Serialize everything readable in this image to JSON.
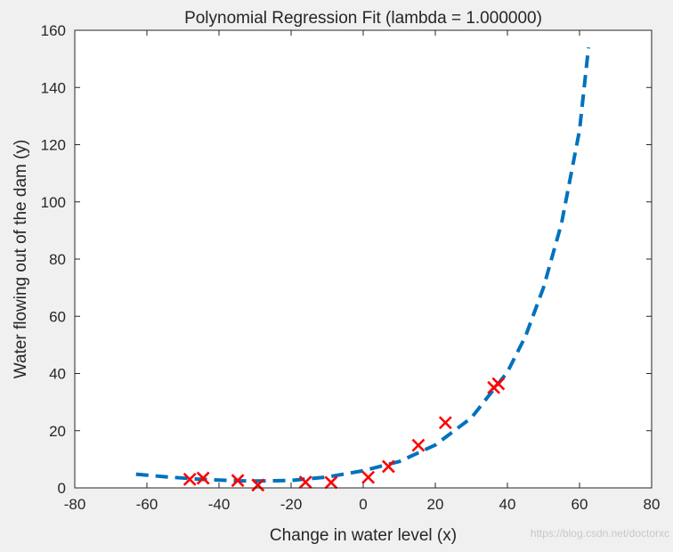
{
  "chart_data": {
    "type": "scatter",
    "title": "Polynomial Regression Fit (lambda = 1.000000)",
    "xlabel": "Change in water level (x)",
    "ylabel": "Water flowing out of the dam (y)",
    "xlim": [
      -80,
      80
    ],
    "ylim": [
      0,
      160
    ],
    "xticks": [
      -80,
      -60,
      -40,
      -20,
      0,
      20,
      40,
      60,
      80
    ],
    "yticks": [
      0,
      20,
      40,
      60,
      80,
      100,
      120,
      140,
      160
    ],
    "grid": false,
    "legend": "none",
    "series": [
      {
        "kind": "scatter",
        "marker": "x",
        "color": "#ff0000",
        "points": [
          [
            -48.1,
            3.0
          ],
          [
            -44.4,
            3.4
          ],
          [
            -34.8,
            2.6
          ],
          [
            -29.2,
            1.0
          ],
          [
            -16.0,
            2.0
          ],
          [
            -8.9,
            1.9
          ],
          [
            1.4,
            3.7
          ],
          [
            7.0,
            7.5
          ],
          [
            15.3,
            14.9
          ],
          [
            22.8,
            22.8
          ],
          [
            36.2,
            35.1
          ],
          [
            37.5,
            36.4
          ]
        ]
      },
      {
        "kind": "line",
        "style": "dashed",
        "color": "#0072bd",
        "points": [
          [
            -63,
            4.8
          ],
          [
            -55,
            3.9
          ],
          [
            -45,
            3.0
          ],
          [
            -35,
            2.5
          ],
          [
            -30,
            2.4
          ],
          [
            -20,
            2.6
          ],
          [
            -10,
            3.8
          ],
          [
            0,
            6.0
          ],
          [
            10,
            9.2
          ],
          [
            20,
            15.0
          ],
          [
            30,
            24.5
          ],
          [
            40,
            40.5
          ],
          [
            45,
            53.0
          ],
          [
            50,
            70.0
          ],
          [
            55,
            92.5
          ],
          [
            60,
            125.0
          ],
          [
            62.5,
            154.0
          ]
        ]
      }
    ]
  },
  "watermark": "https://blog.csdn.net/doctorxc"
}
